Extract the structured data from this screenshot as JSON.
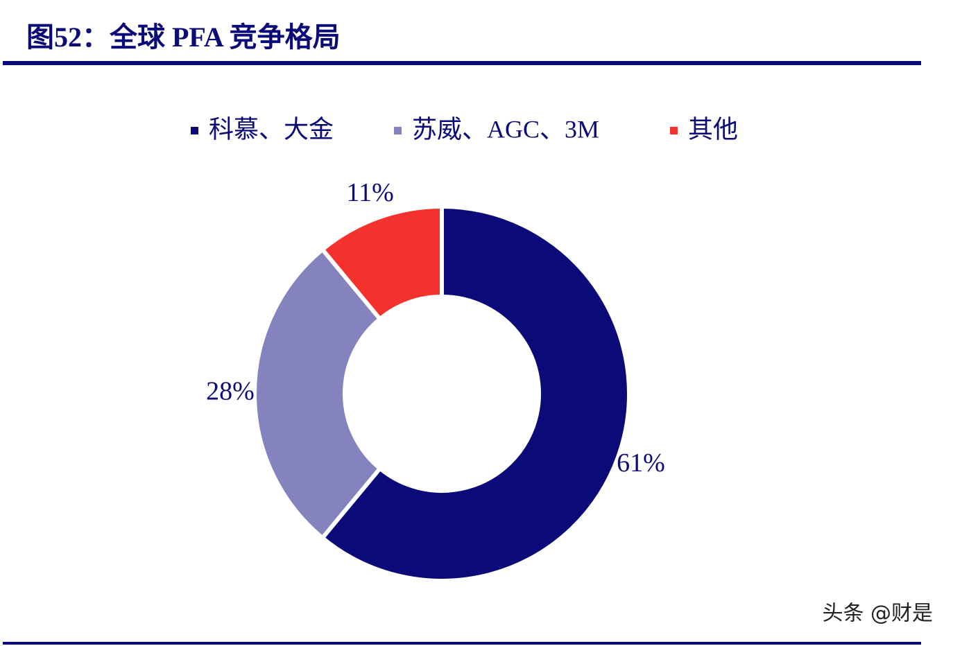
{
  "chart_data": {
    "type": "donut",
    "title": "图52：全球 PFA 竞争格局",
    "categories": [
      "科慕、大金",
      "苏威、AGC、3M",
      "其他"
    ],
    "values": [
      61,
      28,
      11
    ],
    "value_labels": [
      "61%",
      "28%",
      "11%"
    ],
    "colors": [
      "#0a0a78",
      "#8583bd",
      "#f5312e"
    ],
    "watermark": "头条 @财是"
  }
}
